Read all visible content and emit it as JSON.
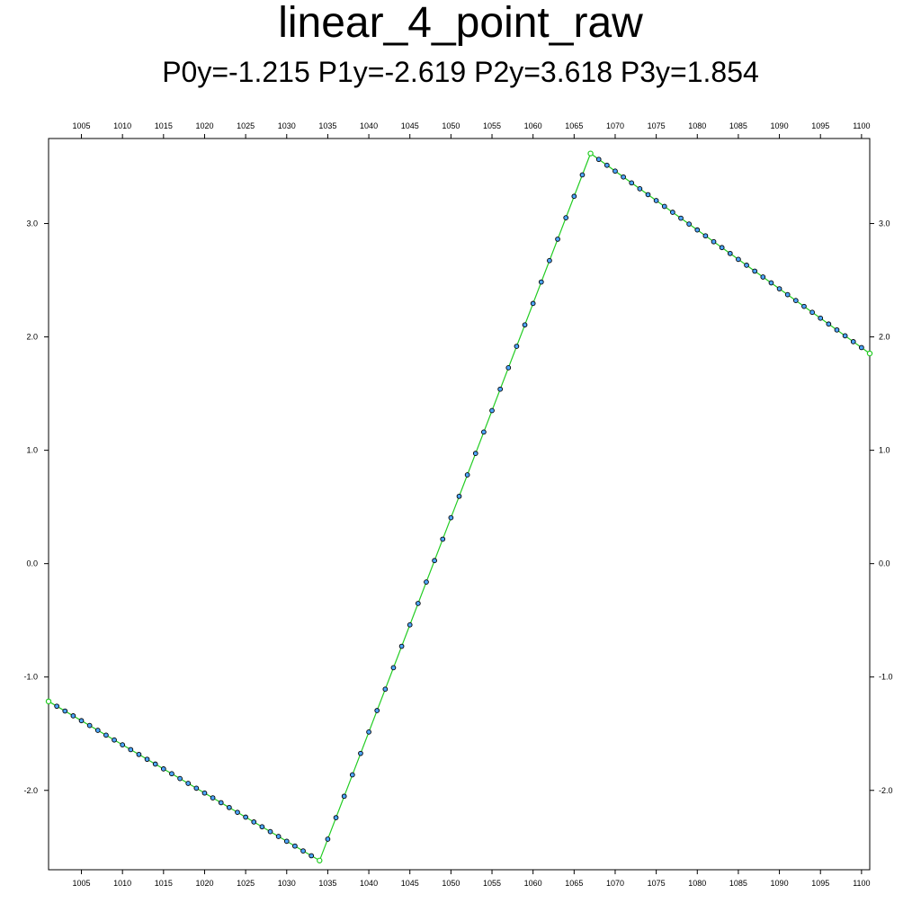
{
  "chart_data": {
    "type": "scatter",
    "title": "linear_4_point_raw",
    "subtitle": "P0y=-1.215 P1y=-2.619 P2y=3.618 P3y=1.854",
    "xlim": [
      1001,
      1101
    ],
    "ylim": [
      -2.7,
      3.75
    ],
    "x_ticks": [
      1005,
      1010,
      1015,
      1020,
      1025,
      1030,
      1035,
      1040,
      1045,
      1050,
      1055,
      1060,
      1065,
      1070,
      1075,
      1080,
      1085,
      1090,
      1095,
      1100
    ],
    "y_ticks": [
      "-2.0",
      "-1.0",
      "0.0",
      "1.0",
      "2.0",
      "3.0"
    ],
    "control_points": [
      {
        "name": "P0",
        "x": 1001,
        "y": -1.215
      },
      {
        "name": "P1",
        "x": 1034,
        "y": -2.619
      },
      {
        "name": "P2",
        "x": 1067,
        "y": 3.618
      },
      {
        "name": "P3",
        "x": 1101,
        "y": 1.854
      }
    ],
    "sample_range": [
      1001,
      1101
    ],
    "grid": false,
    "colors": {
      "line": "#22cc22",
      "marker_fill": "#4da6ff",
      "marker_edge": "#000000",
      "control_point": "#22cc22"
    }
  }
}
